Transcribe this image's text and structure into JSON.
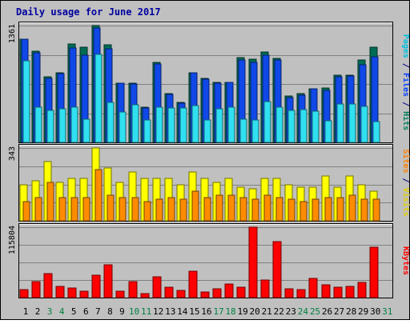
{
  "chart_data": {
    "title": "Daily usage for June 2017",
    "type": "bar",
    "categories": [
      "1",
      "2",
      "3",
      "4",
      "5",
      "6",
      "7",
      "8",
      "9",
      "10",
      "11",
      "12",
      "13",
      "14",
      "15",
      "16",
      "17",
      "18",
      "19",
      "20",
      "21",
      "22",
      "23",
      "24",
      "25",
      "26",
      "27",
      "28",
      "29",
      "30",
      "31"
    ],
    "weekend_days": [
      "3",
      "4",
      "10",
      "11",
      "17",
      "18",
      "24",
      "25",
      "31"
    ],
    "panels": [
      {
        "id": "top",
        "ymax_label": "1361",
        "ymax": 1361,
        "legend": [
          {
            "text": "Pages",
            "color": "#00c0e0"
          },
          {
            "text": " / ",
            "color": "#000080"
          },
          {
            "text": "Files",
            "color": "#0040ff"
          },
          {
            "text": " / ",
            "color": "#000080"
          },
          {
            "text": "Hits",
            "color": "#008060"
          }
        ],
        "series": [
          {
            "name": "Hits",
            "color": "#006c54",
            "values": [
              1200,
              1060,
              760,
              810,
              1150,
              1110,
              1361,
              1140,
              690,
              690,
              410,
              930,
              570,
              470,
              810,
              750,
              700,
              700,
              990,
              970,
              1050,
              980,
              540,
              570,
              620,
              630,
              780,
              780,
              960,
              1110,
              null
            ]
          },
          {
            "name": "Files",
            "color": "#1048e8",
            "values": [
              1200,
              1040,
              750,
              800,
              1100,
              1020,
              1330,
              1090,
              690,
              680,
              400,
              910,
              560,
              460,
              810,
              740,
              690,
              700,
              960,
              930,
              1020,
              960,
              520,
              550,
              620,
              610,
              760,
              770,
              900,
              1000,
              null
            ]
          },
          {
            "name": "Pages",
            "color": "#30e0f0",
            "values": [
              950,
              410,
              370,
              390,
              410,
              270,
              1030,
              470,
              350,
              440,
              260,
              410,
              400,
              400,
              430,
              260,
              390,
              410,
              270,
              260,
              480,
              410,
              370,
              380,
              360,
              250,
              450,
              450,
              420,
              240,
              null
            ]
          }
        ]
      },
      {
        "id": "middle",
        "ymax_label": "343",
        "ymax": 343,
        "legend": [
          {
            "text": "Sites",
            "color": "#ff8000"
          },
          {
            "text": " / ",
            "color": "#000080"
          },
          {
            "text": "Visits",
            "color": "#e0d000"
          }
        ],
        "series": [
          {
            "name": "Visits",
            "color": "#ffff00",
            "values": [
              170,
              190,
              280,
              180,
              200,
              200,
              343,
              250,
              180,
              230,
              200,
              200,
              200,
              170,
              230,
              200,
              180,
              200,
              160,
              150,
              200,
              200,
              170,
              160,
              160,
              210,
              160,
              210,
              170,
              140,
              null
            ]
          },
          {
            "name": "Sites",
            "color": "#ff8c00",
            "values": [
              90,
              110,
              180,
              110,
              110,
              110,
              240,
              120,
              110,
              110,
              90,
              100,
              110,
              100,
              140,
              110,
              120,
              120,
              110,
              100,
              120,
              110,
              100,
              90,
              100,
              110,
              110,
              120,
              100,
              100,
              null
            ]
          }
        ]
      },
      {
        "id": "bottom",
        "ymax_label": "115804",
        "ymax": 115804,
        "legend": [
          {
            "text": "KBytes",
            "color": "#ff0000"
          }
        ],
        "series": [
          {
            "name": "KBytes",
            "color": "#ff0000",
            "values": [
              13000,
              26000,
              39000,
              19000,
              16000,
              10000,
              37000,
              54000,
              11000,
              26000,
              6000,
              34000,
              17000,
              12000,
              44000,
              9000,
              15000,
              22000,
              17000,
              116000,
              29000,
              92000,
              14000,
              13000,
              31000,
              21000,
              17000,
              18000,
              25000,
              83000,
              null
            ]
          }
        ]
      }
    ]
  }
}
